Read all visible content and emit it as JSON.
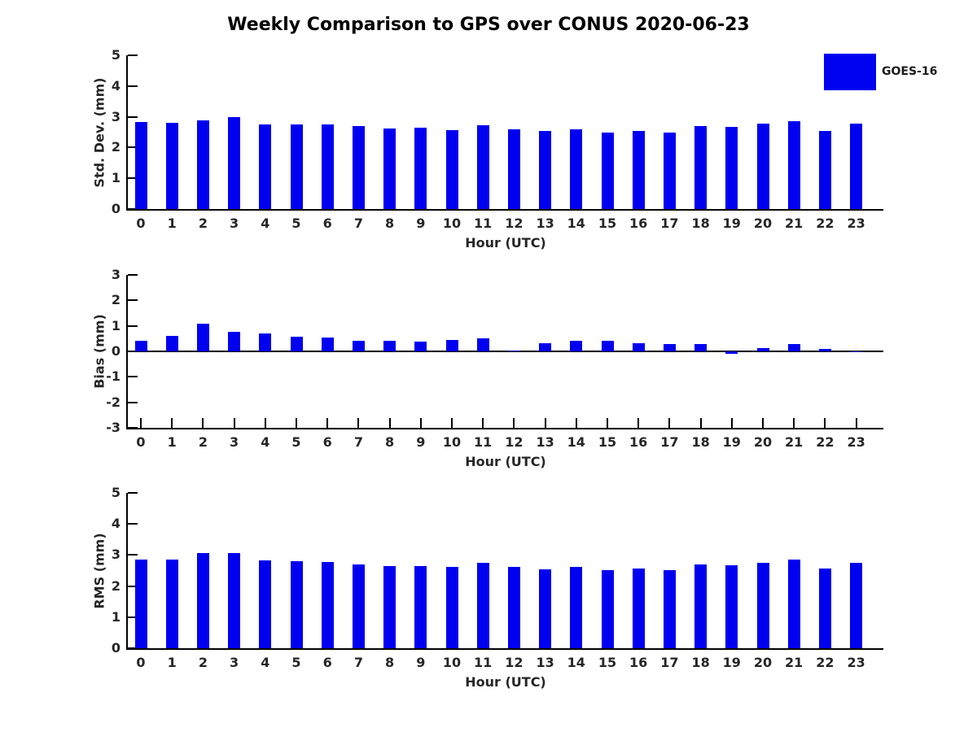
{
  "title": "Weekly Comparison to GPS over CONUS 2020-06-23",
  "legend": {
    "label": "GOES-16",
    "swatch_color": "#0000f0",
    "position": "top-right"
  },
  "colors": {
    "bar": "#0000f0",
    "axis": "#000000",
    "tick_text": "#262626",
    "title_text": "#000000"
  },
  "chart_data": [
    {
      "type": "bar",
      "title": "",
      "series_name": "GOES-16",
      "xlabel": "Hour (UTC)",
      "ylabel": "Std. Dev. (mm)",
      "categories": [
        "0",
        "1",
        "2",
        "3",
        "4",
        "5",
        "6",
        "7",
        "8",
        "9",
        "10",
        "11",
        "12",
        "13",
        "14",
        "15",
        "16",
        "17",
        "18",
        "19",
        "20",
        "21",
        "22",
        "23"
      ],
      "values": [
        2.82,
        2.8,
        2.88,
        2.98,
        2.74,
        2.75,
        2.75,
        2.7,
        2.63,
        2.64,
        2.56,
        2.72,
        2.6,
        2.54,
        2.58,
        2.48,
        2.53,
        2.5,
        2.69,
        2.66,
        2.77,
        2.86,
        2.55,
        2.77
      ],
      "ylim": [
        0,
        5
      ],
      "yticks": [
        0,
        1,
        2,
        3,
        4,
        5
      ],
      "grid": false
    },
    {
      "type": "bar",
      "title": "",
      "series_name": "GOES-16",
      "xlabel": "Hour (UTC)",
      "ylabel": "Bias (mm)",
      "categories": [
        "0",
        "1",
        "2",
        "3",
        "4",
        "5",
        "6",
        "7",
        "8",
        "9",
        "10",
        "11",
        "12",
        "13",
        "14",
        "15",
        "16",
        "17",
        "18",
        "19",
        "20",
        "21",
        "22",
        "23"
      ],
      "values": [
        0.42,
        0.62,
        1.1,
        0.78,
        0.7,
        0.58,
        0.55,
        0.43,
        0.43,
        0.38,
        0.46,
        0.5,
        0.03,
        0.31,
        0.4,
        0.41,
        0.33,
        0.29,
        0.28,
        -0.08,
        0.12,
        0.3,
        0.1,
        -0.03
      ],
      "ylim": [
        -3,
        3
      ],
      "yticks": [
        -3,
        -2,
        -1,
        0,
        1,
        2,
        3
      ],
      "grid": false
    },
    {
      "type": "bar",
      "title": "",
      "series_name": "GOES-16",
      "xlabel": "Hour (UTC)",
      "ylabel": "RMS (mm)",
      "categories": [
        "0",
        "1",
        "2",
        "3",
        "4",
        "5",
        "6",
        "7",
        "8",
        "9",
        "10",
        "11",
        "12",
        "13",
        "14",
        "15",
        "16",
        "17",
        "18",
        "19",
        "20",
        "21",
        "22",
        "23"
      ],
      "values": [
        2.86,
        2.86,
        3.07,
        3.06,
        2.83,
        2.8,
        2.78,
        2.7,
        2.65,
        2.65,
        2.61,
        2.76,
        2.61,
        2.54,
        2.61,
        2.51,
        2.56,
        2.51,
        2.7,
        2.67,
        2.75,
        2.86,
        2.57,
        2.75
      ],
      "ylim": [
        0,
        5
      ],
      "yticks": [
        0,
        1,
        2,
        3,
        4,
        5
      ],
      "grid": false
    }
  ]
}
